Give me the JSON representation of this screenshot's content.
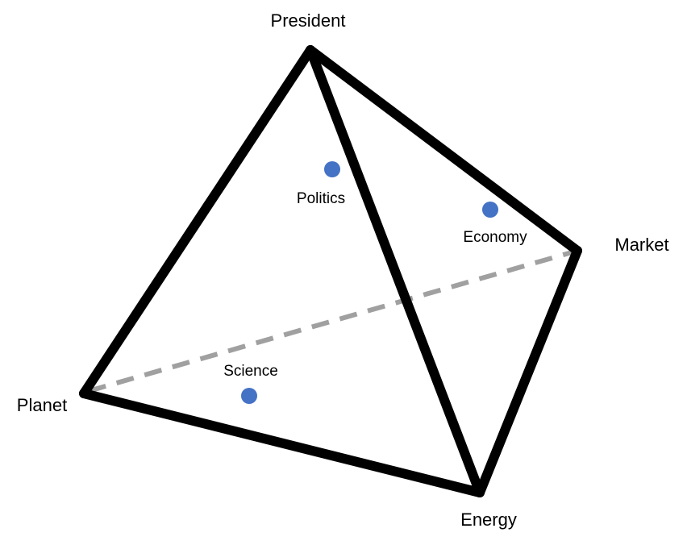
{
  "diagram": {
    "title": "",
    "vertices": {
      "president": "President",
      "market": "Market",
      "planet": "Planet",
      "energy": "Energy"
    },
    "faces": {
      "politics": "Politics",
      "economy": "Economy",
      "science": "Science"
    },
    "colors": {
      "edge": "#000000",
      "hidden_edge": "#a0a0a0",
      "dot": "#4472c4",
      "background": "#ffffff"
    }
  }
}
